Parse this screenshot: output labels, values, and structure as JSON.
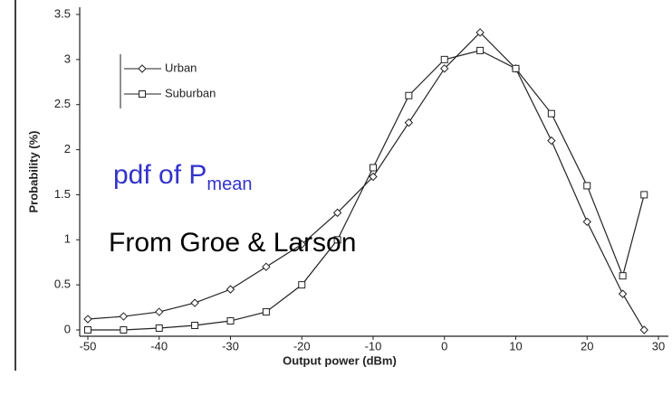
{
  "chart_data": {
    "type": "line",
    "xlabel": "Output power (dBm)",
    "ylabel": "Probability (%)",
    "x": [
      -50,
      -45,
      -40,
      -35,
      -30,
      -25,
      -20,
      -15,
      -10,
      -5,
      0,
      5,
      10,
      15,
      20,
      25,
      28
    ],
    "series": [
      {
        "name": "Urban",
        "color": "#222222",
        "marker": "diamond",
        "values": [
          0.12,
          0.15,
          0.2,
          0.3,
          0.45,
          0.7,
          0.95,
          1.3,
          1.7,
          2.3,
          2.9,
          3.3,
          2.9,
          2.1,
          1.2,
          0.4,
          0
        ]
      },
      {
        "name": "Suburban",
        "color": "#222222",
        "marker": "square",
        "values": [
          0,
          0,
          0.02,
          0.05,
          0.1,
          0.2,
          0.5,
          1.0,
          1.8,
          2.6,
          3.0,
          3.1,
          2.9,
          2.4,
          1.6,
          0.6,
          1.5
        ]
      }
    ],
    "xlim": [
      -50,
      30
    ],
    "xticks": [
      -50,
      -40,
      -30,
      -20,
      -10,
      0,
      10,
      20,
      30
    ],
    "ylim": [
      0,
      3.5
    ],
    "yticks": [
      0,
      0.5,
      1,
      1.5,
      2,
      2.5,
      3,
      3.5
    ],
    "legend": "upper left",
    "annotations": [
      {
        "text": "pdf of P",
        "subscript": "mean",
        "color": "#3333cc"
      },
      {
        "text": "From Groe & Larson",
        "color": "#000000"
      }
    ]
  }
}
